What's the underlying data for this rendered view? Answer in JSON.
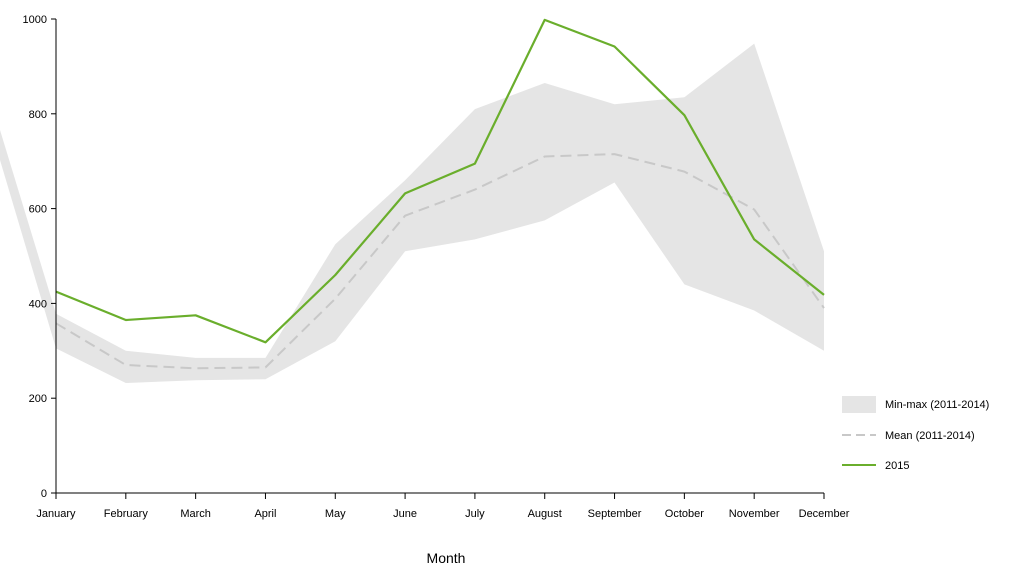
{
  "chart_data": {
    "type": "line",
    "title": "",
    "xlabel": "Month",
    "ylabel": "",
    "categories": [
      "January",
      "February",
      "March",
      "April",
      "May",
      "June",
      "July",
      "August",
      "September",
      "October",
      "November",
      "December"
    ],
    "ylim": [
      0,
      1000
    ],
    "yticks": [
      0,
      200,
      400,
      600,
      800,
      1000
    ],
    "grid": false,
    "legend_position": "right",
    "band": {
      "name": "Min-max (2011-2014)",
      "color": "#e5e5e5",
      "min": [
        305,
        232,
        238,
        240,
        320,
        510,
        535,
        575,
        655,
        440,
        385,
        300
      ],
      "max": [
        378,
        300,
        285,
        285,
        525,
        660,
        810,
        865,
        820,
        835,
        948,
        510
      ]
    },
    "series": [
      {
        "name": "Mean (2011-2014)",
        "color": "#c8c8c8",
        "dash": true,
        "values": [
          358,
          270,
          263,
          265,
          410,
          585,
          640,
          710,
          715,
          678,
          598,
          390
        ]
      },
      {
        "name": "2015",
        "color": "#6aae2c",
        "dash": false,
        "values": [
          425,
          365,
          375,
          318,
          460,
          632,
          695,
          998,
          942,
          797,
          535,
          418
        ]
      }
    ]
  }
}
